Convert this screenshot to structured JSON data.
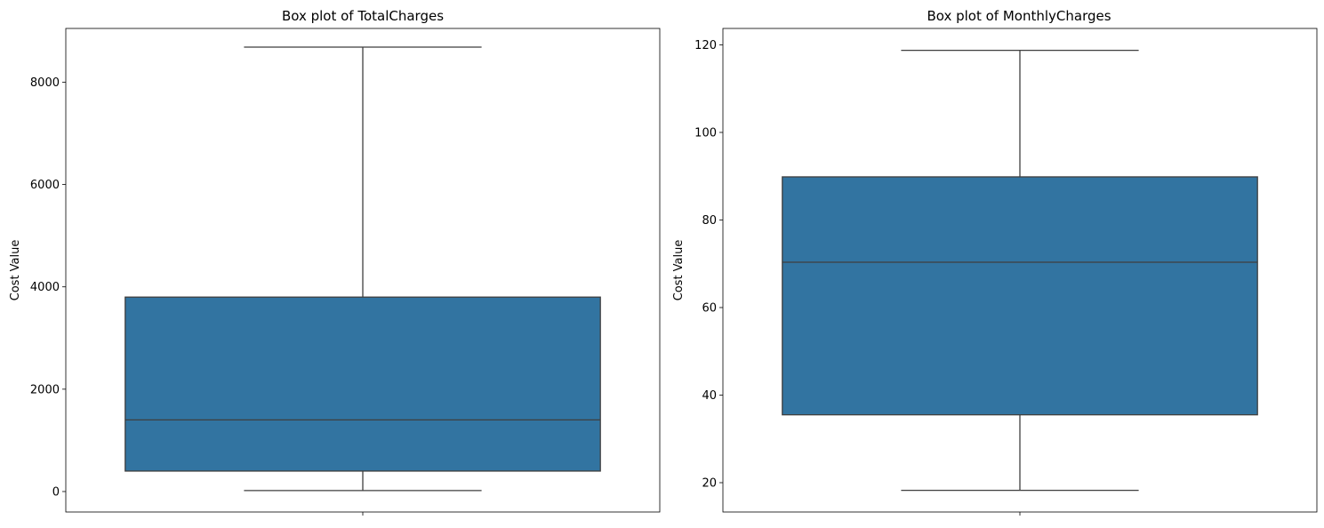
{
  "chart_data": [
    {
      "type": "box",
      "title": "Box plot of TotalCharges",
      "xlabel": "",
      "ylabel": "Cost Value",
      "ylim": [
        -400,
        9050
      ],
      "yticks": [
        0,
        2000,
        4000,
        6000,
        8000
      ],
      "box": {
        "whisker_low": 19,
        "q1": 400,
        "median": 1400,
        "q3": 3800,
        "whisker_high": 8685
      },
      "color": "#3274a1",
      "line_color": "#3f3f3f"
    },
    {
      "type": "box",
      "title": "Box plot of MonthlyCharges",
      "xlabel": "",
      "ylabel": "Cost Value",
      "ylim": [
        13.3,
        123.75
      ],
      "yticks": [
        20,
        40,
        60,
        80,
        100,
        120
      ],
      "box": {
        "whisker_low": 18.25,
        "q1": 35.5,
        "median": 70.35,
        "q3": 89.85,
        "whisker_high": 118.75
      },
      "color": "#3274a1",
      "line_color": "#3f3f3f"
    }
  ]
}
